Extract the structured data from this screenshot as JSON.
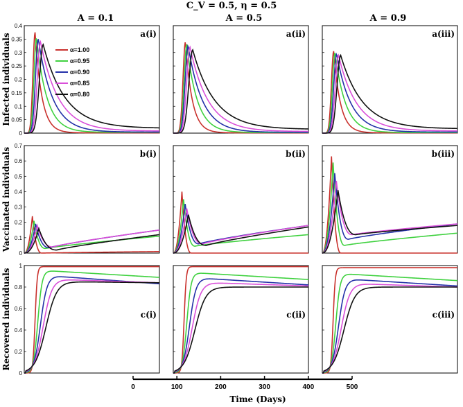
{
  "figure": {
    "main_title": "C_V = 0.5, η = 0.5",
    "columns": [
      "A = 0.1",
      "A = 0.5",
      "A = 0.9"
    ],
    "xlabel": "Time (Days)"
  },
  "chart_data": {
    "type": "line",
    "title": "C_V = 0.5, η = 0.5",
    "xlabel": "Time (Days)",
    "x_axis_ticks": [
      0,
      100,
      200,
      300,
      400,
      500
    ],
    "xlim": [
      0,
      500
    ],
    "series_names": [
      "α=1.00",
      "α=0.95",
      "α=0.90",
      "α=0.85",
      "α=0.80"
    ],
    "series_colors": [
      "#c9302c",
      "#3fd13f",
      "#2330a8",
      "#d94fd9",
      "#111111"
    ],
    "rows": [
      {
        "ylabel": "Infected individuals",
        "ylim": [
          0,
          0.4
        ],
        "yticks": [
          "0",
          "0.05",
          "0.1",
          "0.15",
          "0.2",
          "0.25",
          "0.3",
          "0.35",
          "0.4"
        ],
        "panel_labels": [
          "a(i)",
          "a(ii)",
          "a(iii)"
        ],
        "peaks": [
          [
            0.375,
            0.355,
            0.35,
            0.34,
            0.33
          ],
          [
            0.34,
            0.33,
            0.325,
            0.32,
            0.31
          ],
          [
            0.305,
            0.3,
            0.295,
            0.29,
            0.29
          ]
        ],
        "peak_times": [
          [
            40,
            45,
            52,
            60,
            70
          ],
          [
            45,
            50,
            55,
            62,
            72
          ],
          [
            42,
            47,
            53,
            60,
            68
          ]
        ],
        "ends": [
          [
            0.001,
            0.003,
            0.004,
            0.008,
            0.018
          ],
          [
            0.001,
            0.002,
            0.003,
            0.006,
            0.014
          ],
          [
            0.001,
            0.002,
            0.004,
            0.008,
            0.016
          ]
        ]
      },
      {
        "ylabel": "Vaccinated individuals",
        "ylim": [
          0,
          0.7
        ],
        "yticks": [
          "0",
          "0.1",
          "0.2",
          "0.3",
          "0.4",
          "0.5",
          "0.6",
          "0.7"
        ],
        "panel_labels": [
          "b(i)",
          "b(ii)",
          "b(iii)"
        ],
        "peaks": [
          [
            0.24,
            0.21,
            0.19,
            0.18,
            0.16
          ],
          [
            0.4,
            0.35,
            0.32,
            0.29,
            0.25
          ],
          [
            0.63,
            0.59,
            0.52,
            0.47,
            0.41
          ]
        ],
        "minima": [
          [
            0.0,
            0.03,
            0.035,
            0.04,
            0.02
          ],
          [
            0.0,
            0.045,
            0.06,
            0.06,
            0.05
          ],
          [
            0.0,
            0.05,
            0.09,
            0.12,
            0.12
          ]
        ],
        "ends": [
          [
            0.01,
            0.11,
            0.15,
            0.15,
            0.12
          ],
          [
            0.0,
            0.12,
            0.18,
            0.18,
            0.17
          ],
          [
            0.0,
            0.13,
            0.19,
            0.19,
            0.18
          ]
        ]
      },
      {
        "ylabel": "Recovered individuals",
        "ylim": [
          0,
          1
        ],
        "yticks": [
          "0",
          "0.2",
          "0.4",
          "0.6",
          "0.8",
          "1"
        ],
        "panel_labels": [
          "c(i)",
          "c(ii)",
          "c(iii)"
        ],
        "plateaus": [
          [
            0.99,
            0.95,
            0.9,
            0.87,
            0.85
          ],
          [
            0.99,
            0.93,
            0.88,
            0.84,
            0.8
          ],
          [
            0.98,
            0.92,
            0.87,
            0.83,
            0.8
          ]
        ],
        "ends": [
          [
            0.99,
            0.89,
            0.83,
            0.84,
            0.84
          ],
          [
            0.99,
            0.87,
            0.82,
            0.81,
            0.8
          ],
          [
            0.98,
            0.86,
            0.81,
            0.8,
            0.8
          ]
        ]
      }
    ]
  }
}
